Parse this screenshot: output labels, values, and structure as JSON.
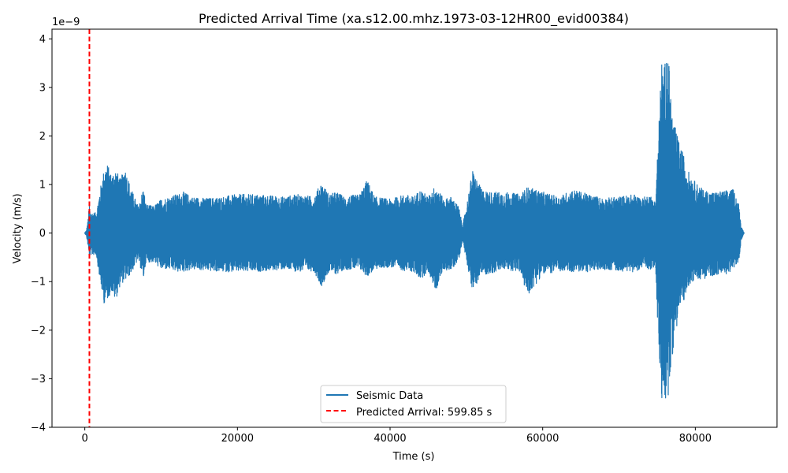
{
  "chart_data": {
    "type": "line",
    "title": "Predicted Arrival Time (xa.s12.00.mhz.1973-03-12HR00_evid00384)",
    "xlabel": "Time (s)",
    "ylabel": "Velocity (m/s)",
    "y_multiplier_label": "1e−9",
    "x_range": [
      -4300,
      90700
    ],
    "y_range": [
      -4.0,
      4.2
    ],
    "x_ticks": [
      0,
      20000,
      40000,
      60000,
      80000
    ],
    "x_tick_labels": [
      "0",
      "20000",
      "40000",
      "60000",
      "80000"
    ],
    "y_ticks": [
      -4,
      -3,
      -2,
      -1,
      0,
      1,
      2,
      3,
      4
    ],
    "y_tick_labels": [
      "−4",
      "−3",
      "−2",
      "−1",
      "0",
      "1",
      "2",
      "3",
      "4"
    ],
    "grid": false,
    "legend_position": "bottom-center",
    "series": [
      {
        "name": "Seismic Data",
        "color": "#1f77b4",
        "style": "solid",
        "x_start": 0,
        "x_end": 86400,
        "envelope": {
          "x": [
            0,
            200,
            400,
            600,
            700,
            1000,
            1500,
            2000,
            2500,
            2900,
            3500,
            4000,
            4700,
            5200,
            6000,
            7000,
            7700,
            8000,
            9000,
            10000,
            11000,
            12000,
            13000,
            14000,
            16000,
            18000,
            20000,
            22000,
            24000,
            26000,
            28000,
            30000,
            31000,
            32000,
            33000,
            34000,
            36000,
            37000,
            38000,
            40000,
            42000,
            43000,
            44000,
            45000,
            46000,
            47000,
            48000,
            49000,
            49500,
            50000,
            50800,
            52000,
            53000,
            55000,
            57000,
            58000,
            60000,
            62000,
            64000,
            66000,
            68000,
            70000,
            72000,
            73000,
            74000,
            74800,
            75000,
            75300,
            75600,
            75800,
            76200,
            76600,
            77000,
            77500,
            78000,
            78500,
            79000,
            80000,
            81000,
            82000,
            83000,
            84000,
            85000,
            85700,
            86000,
            86400
          ],
          "upper": [
            0.01,
            0.05,
            0.25,
            0.6,
            0.45,
            0.42,
            0.42,
            0.9,
            1.3,
            1.45,
            1.2,
            1.35,
            1.1,
            1.4,
            0.95,
            0.55,
            0.95,
            0.6,
            0.55,
            0.7,
            0.75,
            0.8,
            0.85,
            0.75,
            0.72,
            0.75,
            0.8,
            0.8,
            0.78,
            0.75,
            0.8,
            0.75,
            1.05,
            0.8,
            0.85,
            0.75,
            0.8,
            1.1,
            0.75,
            0.7,
            0.8,
            0.75,
            0.9,
            0.75,
            1.0,
            0.7,
            0.75,
            0.55,
            0.15,
            0.55,
            1.3,
            0.9,
            0.85,
            0.85,
            0.8,
            0.95,
            0.85,
            0.75,
            0.9,
            0.8,
            0.72,
            0.75,
            0.8,
            0.72,
            0.8,
            0.65,
            1.5,
            2.5,
            3.7,
            3.2,
            3.85,
            3.4,
            2.4,
            2.1,
            1.8,
            1.6,
            1.3,
            1.05,
            0.9,
            0.85,
            0.85,
            0.88,
            0.9,
            0.6,
            0.15,
            0.0
          ],
          "lower": [
            -0.01,
            -0.05,
            -0.25,
            -0.55,
            -0.45,
            -0.45,
            -0.45,
            -1.0,
            -1.45,
            -1.4,
            -1.2,
            -1.4,
            -1.05,
            -1.0,
            -0.85,
            -0.55,
            -0.95,
            -0.6,
            -0.6,
            -0.75,
            -0.75,
            -0.8,
            -0.8,
            -0.75,
            -0.78,
            -0.8,
            -0.8,
            -0.8,
            -0.78,
            -0.75,
            -0.8,
            -0.78,
            -1.1,
            -0.8,
            -0.85,
            -0.75,
            -0.75,
            -0.9,
            -0.75,
            -0.7,
            -0.78,
            -0.8,
            -0.95,
            -0.8,
            -1.2,
            -0.75,
            -0.78,
            -0.55,
            -0.15,
            -0.55,
            -1.2,
            -0.85,
            -0.85,
            -0.75,
            -0.8,
            -1.3,
            -0.85,
            -0.8,
            -0.8,
            -0.8,
            -0.75,
            -0.78,
            -0.8,
            -0.72,
            -0.75,
            -0.7,
            -1.7,
            -2.6,
            -3.5,
            -3.3,
            -3.6,
            -3.2,
            -2.5,
            -2.0,
            -1.5,
            -1.4,
            -1.1,
            -0.95,
            -0.95,
            -0.9,
            -0.85,
            -0.85,
            -0.75,
            -0.6,
            -0.15,
            0.0
          ]
        }
      },
      {
        "name": "Predicted Arrival: 599.85 s",
        "color": "#ff0000",
        "style": "dashed",
        "type": "vline",
        "x": 599.85
      }
    ]
  }
}
